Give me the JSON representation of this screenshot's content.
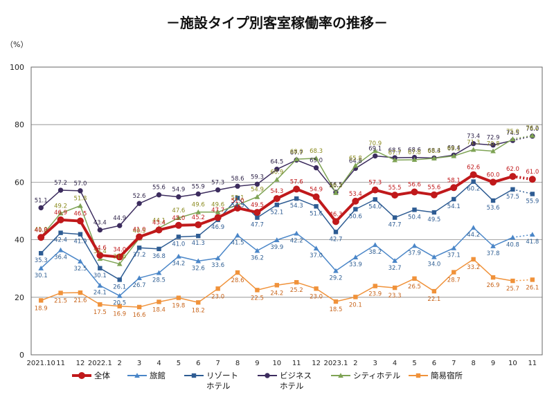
{
  "chart_data": {
    "type": "line",
    "title": "－施設タイプ別客室稼働率の推移－",
    "unit_label": "（%）",
    "ylim": [
      0,
      100
    ],
    "yticks": [
      0,
      20,
      40,
      60,
      80,
      100
    ],
    "grid": true,
    "legend_position": "bottom",
    "categories": [
      "2021.10",
      "11",
      "12",
      "2022.1",
      "2",
      "3",
      "4",
      "5",
      "6",
      "7",
      "8",
      "9",
      "10",
      "11",
      "12",
      "2023.1",
      "2",
      "3",
      "4",
      "5",
      "6",
      "7",
      "8",
      "9",
      "10",
      "11"
    ],
    "series": [
      {
        "name": "全体",
        "color": "#c0191b",
        "label_color": "#c0191b",
        "values": [
          40.8,
          46.9,
          46.5,
          34.6,
          34.0,
          41.0,
          43.4,
          45.0,
          45.2,
          47.7,
          51.0,
          49.5,
          54.3,
          57.6,
          54.9,
          46.3,
          53.4,
          57.3,
          55.5,
          56.6,
          55.6,
          58.1,
          62.6,
          60.0,
          62.0,
          61.0
        ]
      },
      {
        "name": "旅館",
        "color": "#4a86c8",
        "label_color": "#2f5f93",
        "values": [
          30.1,
          36.4,
          32.5,
          24.1,
          20.5,
          26.7,
          28.5,
          34.2,
          32.6,
          33.6,
          41.5,
          36.2,
          39.9,
          42.2,
          37.0,
          29.2,
          33.9,
          38.2,
          32.7,
          37.9,
          34.0,
          37.1,
          44.2,
          37.8,
          40.8,
          41.8
        ]
      },
      {
        "name": "リゾートホテル",
        "color": "#2e5c93",
        "label_color": "#2e5c93",
        "values": [
          35.3,
          42.4,
          41.9,
          30.1,
          26.1,
          37.2,
          36.8,
          41.0,
          41.3,
          46.9,
          54.5,
          47.7,
          52.1,
          54.3,
          51.6,
          42.7,
          50.6,
          54.0,
          47.7,
          50.4,
          49.5,
          54.1,
          60.2,
          53.6,
          57.5,
          55.9
        ]
      },
      {
        "name": "ビジネスホテル",
        "color": "#3c2c5e",
        "label_color": "#2a1f45",
        "values": [
          51.1,
          57.2,
          57.0,
          43.4,
          44.9,
          52.6,
          55.6,
          54.9,
          55.9,
          57.3,
          58.6,
          59.3,
          64.5,
          67.7,
          65.0,
          56.5,
          64.8,
          69.1,
          68.5,
          68.6,
          68.4,
          69.4,
          73.4,
          72.9,
          74.5,
          76.0
        ]
      },
      {
        "name": "シティホテル",
        "color": "#7ea354",
        "label_color": "#8a8a1e",
        "values": [
          41.0,
          49.2,
          51.8,
          33.4,
          31.6,
          40.5,
          44.1,
          47.6,
          49.6,
          49.6,
          52.1,
          54.9,
          60.9,
          68.0,
          68.3,
          56.3,
          65.8,
          70.9,
          67.7,
          67.8,
          68.3,
          69.1,
          71.3,
          70.8,
          75.0,
          76.2
        ]
      },
      {
        "name": "簡易宿所",
        "color": "#f0923a",
        "label_color": "#c8641a",
        "values": [
          18.9,
          21.5,
          21.6,
          17.5,
          16.9,
          16.6,
          18.4,
          19.8,
          18.2,
          23.0,
          28.6,
          22.5,
          24.2,
          25.2,
          23.0,
          18.5,
          20.1,
          23.9,
          23.3,
          26.5,
          22.1,
          28.7,
          33.2,
          26.9,
          25.7,
          26.1
        ]
      }
    ],
    "legend": [
      {
        "label": "全体",
        "marker": "circle"
      },
      {
        "label": "旅館",
        "marker": "triangle"
      },
      {
        "label": "リゾート\nホテル",
        "marker": "square"
      },
      {
        "label": "ビジネス\nホテル",
        "marker": "circle"
      },
      {
        "label": "シティホテル",
        "marker": "triangle"
      },
      {
        "label": "簡易宿所",
        "marker": "square"
      }
    ],
    "note": "last point of each series connected with a dotted line"
  }
}
